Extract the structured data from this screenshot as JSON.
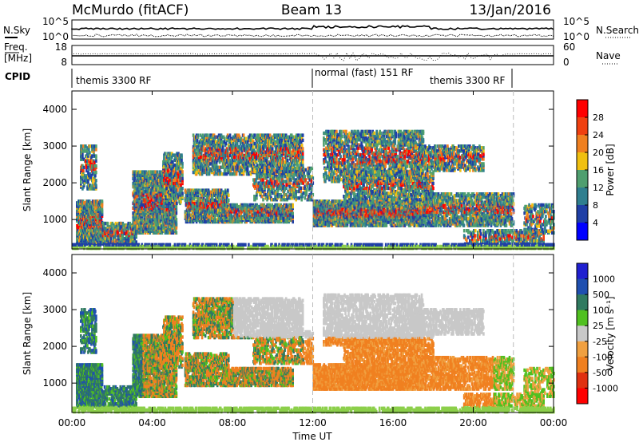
{
  "header": {
    "left": "McMurdo (fitACF)",
    "center": "Beam 13",
    "right": "13/Jan/2016"
  },
  "top_panel": {
    "left_label_1": "N.Sky",
    "left_label_2": "Freq.",
    "left_label_3": "[MHz]",
    "left_label_4": "CPID",
    "sky_ticks": [
      "10^5",
      "10^0"
    ],
    "freq_ticks": [
      "18",
      "8"
    ],
    "right_label_1": "N.Search",
    "right_label_2": "Nave",
    "search_ticks": [
      "10^5",
      "10^0"
    ],
    "nave_ticks": [
      "60",
      "0"
    ],
    "cpid_segments": [
      "themis 3300 RF",
      "normal (fast) 151 RF",
      "themis 3300 RF"
    ]
  },
  "x_axis": {
    "label": "Time UT",
    "ticks": [
      "00:00",
      "04:00",
      "08:00",
      "12:00",
      "16:00",
      "20:00",
      "00:00"
    ]
  },
  "colors": {
    "power": [
      "#0000ff",
      "#1f3fa6",
      "#2f7f8f",
      "#4f9f6f",
      "#f0c010",
      "#f08020",
      "#f04010",
      "#ff0000"
    ],
    "velocity": [
      "#ff0000",
      "#e03010",
      "#f08020",
      "#f0a040",
      "#c8c8c8",
      "#50c020",
      "#307a60",
      "#1f4fb0",
      "#2020d0"
    ],
    "ground": "#8ccf4a",
    "unknown_gray": "#c8c8c8"
  },
  "chart_data": [
    {
      "type": "heatmap",
      "title": "Power",
      "ylabel": "Slant Range [km]",
      "xlabel": "",
      "ylim": [
        200,
        4500
      ],
      "yticks": [
        1000,
        2000,
        3000,
        4000
      ],
      "x_range_hours": [
        0,
        24
      ],
      "colorbar": {
        "label": "Power [dB]",
        "ticks": [
          "4",
          "8",
          "12",
          "16",
          "20",
          "24",
          "28"
        ],
        "range": [
          0,
          32
        ]
      }
    },
    {
      "type": "heatmap",
      "title": "Velocity",
      "ylabel": "Slant Range [km]",
      "xlabel": "Time UT",
      "ylim": [
        200,
        4500
      ],
      "yticks": [
        1000,
        2000,
        3000,
        4000
      ],
      "x_range_hours": [
        0,
        24
      ],
      "colorbar": {
        "label": "Velocity [m s⁻¹]",
        "ticks": [
          "1000",
          "500",
          "100",
          "25",
          "-25",
          "-100",
          "-500",
          "-1000"
        ]
      }
    }
  ]
}
